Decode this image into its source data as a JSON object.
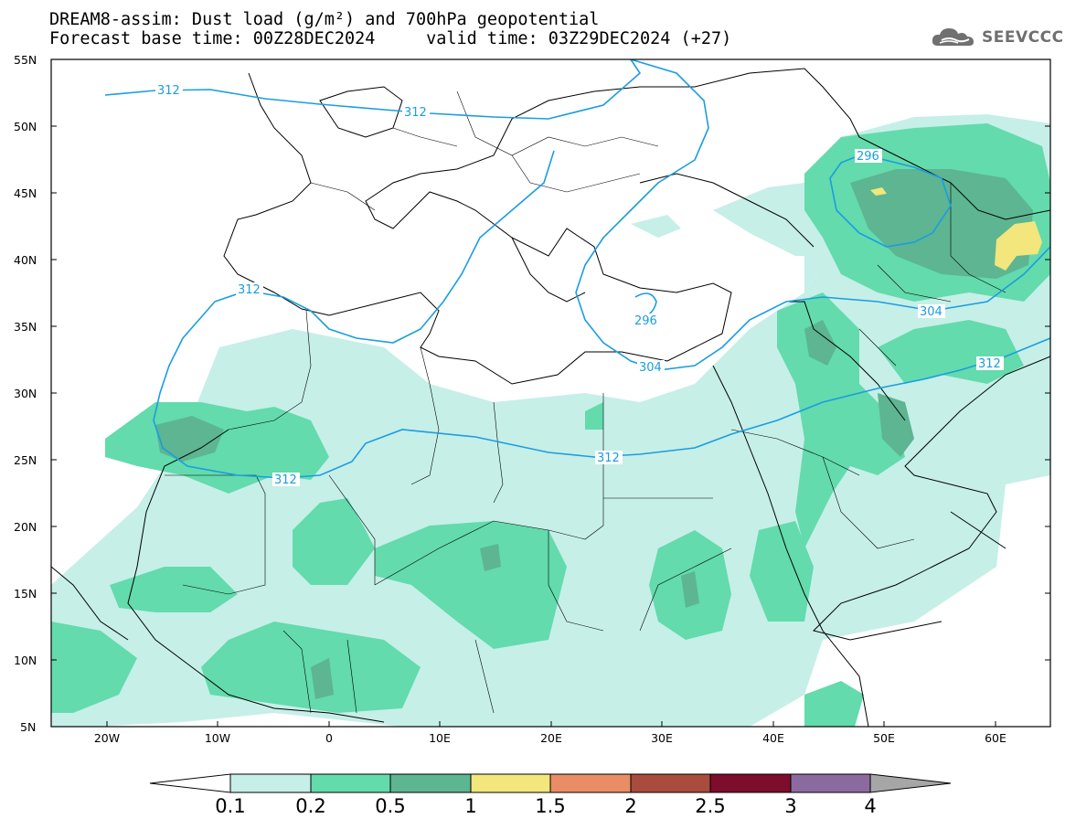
{
  "title": {
    "line1": "DREAM8-assim: Dust load (g/m²) and 700hPa geopotential",
    "line2": "Forecast base time: 00Z28DEC2024     valid time: 03Z29DEC2024 (+27)"
  },
  "logo": {
    "text": "SEEVCCC",
    "icon": "cloud-icon"
  },
  "map": {
    "lon_range": [
      -25,
      65
    ],
    "lat_range": [
      5,
      55
    ],
    "lat_ticks": [
      "55N",
      "50N",
      "45N",
      "40N",
      "35N",
      "30N",
      "25N",
      "20N",
      "15N",
      "10N",
      "5N"
    ],
    "lon_ticks": [
      "20W",
      "10W",
      "0",
      "10E",
      "20E",
      "30E",
      "40E",
      "50E",
      "60E"
    ],
    "contour_labels": [
      "312",
      "312",
      "312",
      "312",
      "312",
      "312",
      "296",
      "296",
      "304",
      "304",
      "312"
    ]
  },
  "colorbar": {
    "labels": [
      "0.1",
      "0.2",
      "0.5",
      "1",
      "1.5",
      "2",
      "2.5",
      "3",
      "4"
    ],
    "colors": [
      "#c6efe8",
      "#63dbac",
      "#5db591",
      "#f2e67c",
      "#e88d65",
      "#a94c3d",
      "#7d0d2c",
      "#8b6b9f",
      "#a6a6a6"
    ]
  },
  "colors": {
    "dust_01": "#c6efe8",
    "dust_02": "#63dbac",
    "dust_05": "#5db591",
    "dust_1": "#f2e67c",
    "contour": "#1a9de1",
    "coastline": "#000000"
  }
}
